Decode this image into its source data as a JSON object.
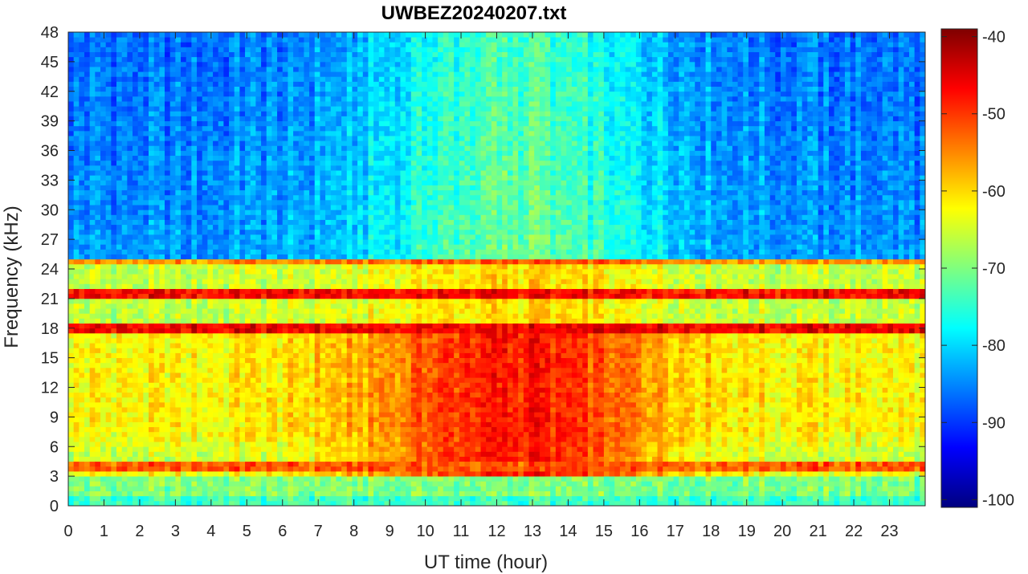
{
  "chart_data": {
    "type": "heatmap",
    "title": "UWBEZ20240207.txt",
    "xlabel": "UT time (hour)",
    "ylabel": "Frequency (kHz)",
    "xlim": [
      0,
      24
    ],
    "ylim": [
      0,
      48
    ],
    "x_ticks": [
      "0",
      "1",
      "2",
      "3",
      "4",
      "5",
      "6",
      "7",
      "8",
      "9",
      "10",
      "11",
      "12",
      "13",
      "14",
      "15",
      "16",
      "17",
      "18",
      "19",
      "20",
      "21",
      "22",
      "23"
    ],
    "y_ticks": [
      "0",
      "3",
      "6",
      "9",
      "12",
      "15",
      "18",
      "21",
      "24",
      "27",
      "30",
      "33",
      "36",
      "39",
      "42",
      "45",
      "48"
    ],
    "colorbar": {
      "colormap": "jet",
      "clim": [
        -101,
        -39
      ],
      "ticks": [
        "-40",
        "-50",
        "-60",
        "-70",
        "-80",
        "-90",
        "-100"
      ]
    },
    "features": {
      "intense_band_khz": [
        3.5,
        18
      ],
      "peak_intensity_hours": [
        10,
        15
      ],
      "horizontal_lines_khz": [
        18.2,
        21.4,
        24.8,
        4.0
      ]
    }
  }
}
